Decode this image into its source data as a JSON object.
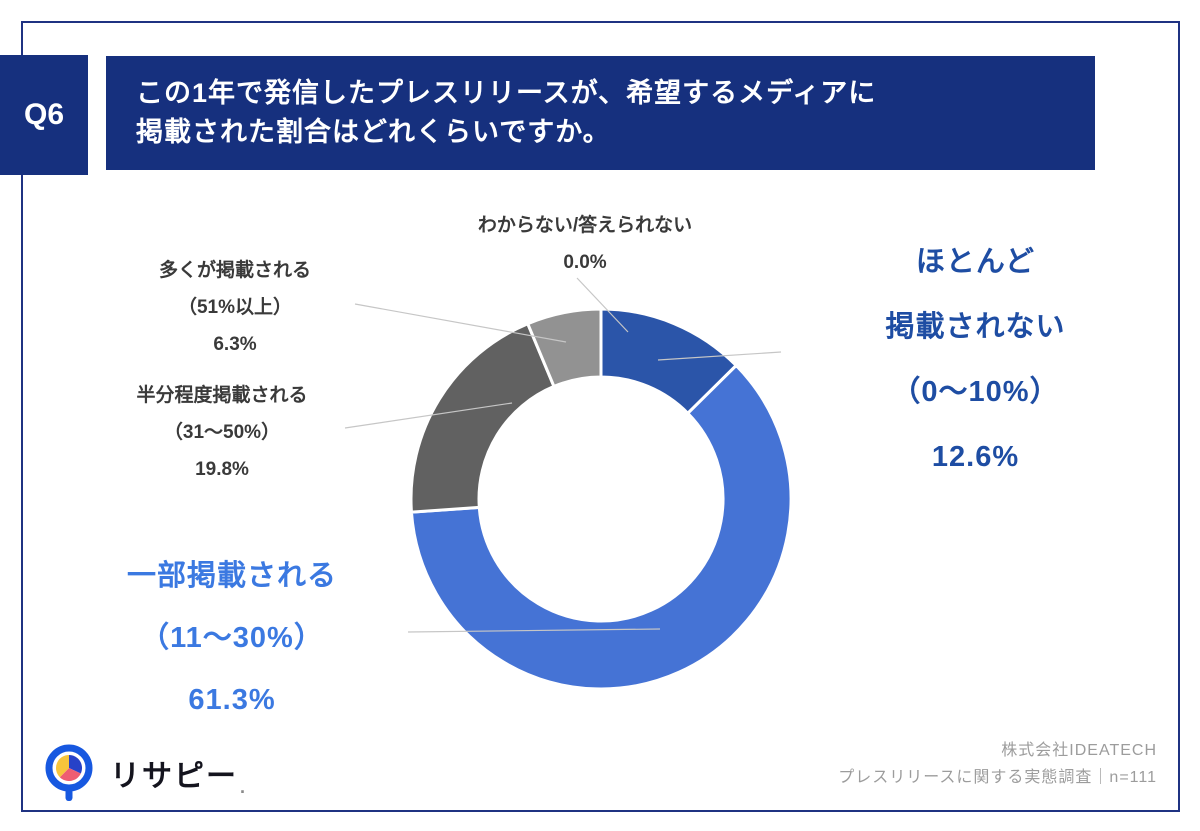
{
  "header": {
    "q_label": "Q6",
    "title_line1": "この1年で発信したプレスリリースが、希望するメディアに",
    "title_line2": "掲載された割合はどれくらいですか。"
  },
  "chart_data": {
    "type": "pie",
    "subtype": "donut",
    "title": "この1年で発信したプレスリリースが、希望するメディアに掲載された割合はどれくらいですか。",
    "start_angle_deg": 0,
    "direction": "clockwise",
    "hole_ratio": 0.64,
    "legend": "none",
    "segments": [
      {
        "label": "ほとんど掲載されない（0〜10%）",
        "value": 12.6,
        "color": "#2B55A9"
      },
      {
        "label": "一部掲載される（11〜30%）",
        "value": 61.3,
        "color": "#4573D5"
      },
      {
        "label": "半分程度掲載される（31〜50%）",
        "value": 19.8,
        "color": "#616161"
      },
      {
        "label": "多くが掲載される（51%以上）",
        "value": 6.3,
        "color": "#929292"
      },
      {
        "label": "わからない/答えられない",
        "value": 0.0,
        "color": "#BFBFBF"
      }
    ]
  },
  "callouts": {
    "unknown": {
      "line1": "わからない/答えられない",
      "pct": "0.0%"
    },
    "most": {
      "line1": "多くが掲載される",
      "line2": "（51%以上）",
      "pct": "6.3%"
    },
    "half": {
      "line1": "半分程度掲載される",
      "line2": "（31〜50%）",
      "pct": "19.8%"
    },
    "almost_none": {
      "line1": "ほとんど",
      "line2": "掲載されない",
      "line3": "（0〜10%）",
      "pct": "12.6%"
    },
    "partial": {
      "line1": "一部掲載される",
      "line2": "（11〜30%）",
      "pct": "61.3%"
    }
  },
  "footer": {
    "logo_text": "リサピー",
    "logo_dot": ".",
    "credit_line1": "株式会社IDEATECH",
    "credit_line2": "プレスリリースに関する実態調査｜n=111"
  },
  "colors": {
    "navy_box": "#16307E",
    "frame_border": "#1F3282",
    "segment_dark_blue": "#2B55A9",
    "segment_blue": "#4573D5",
    "segment_dark_gray": "#616161",
    "segment_light_gray": "#929292",
    "label_dark_blue": "#1E4DA3",
    "label_bright_blue": "#3B79E1",
    "leader_line": "#C6C6C6",
    "credit_gray": "#9C9C9C"
  }
}
